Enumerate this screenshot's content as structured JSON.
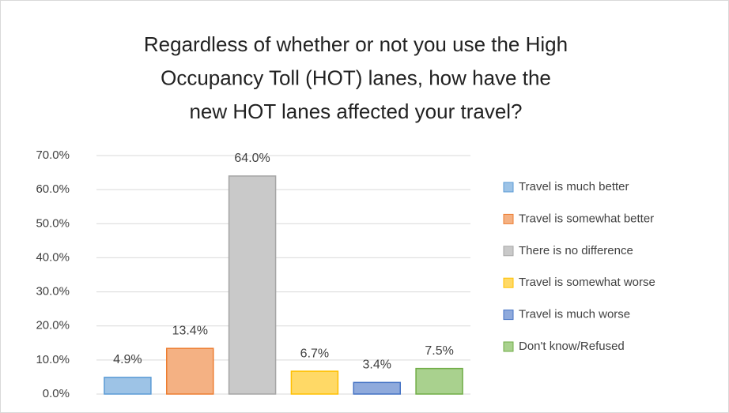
{
  "chart_data": {
    "type": "bar",
    "title": [
      "Regardless of whether or not you use the High",
      "Occupancy Toll (HOT) lanes, how have the",
      "new HOT lanes affected your travel?"
    ],
    "series": [
      {
        "name": "Travel is much better",
        "color": "#9dc3e6",
        "edgecolor": "#5b9bd5",
        "values": [
          4.9
        ],
        "value_labels": [
          "4.9%"
        ]
      },
      {
        "name": "Travel is somewhat better",
        "color": "#f4b183",
        "edgecolor": "#ed7d31",
        "values": [
          13.4
        ],
        "value_labels": [
          "13.4%"
        ]
      },
      {
        "name": "There is no difference",
        "color": "#c9c9c9",
        "edgecolor": "#a5a5a5",
        "values": [
          64.0
        ],
        "value_labels": [
          "64.0%"
        ]
      },
      {
        "name": "Travel is somewhat worse",
        "color": "#ffd966",
        "edgecolor": "#ffc000",
        "values": [
          6.7
        ],
        "value_labels": [
          "6.7%"
        ]
      },
      {
        "name": "Travel is much worse",
        "color": "#8faadc",
        "edgecolor": "#4472c4",
        "values": [
          3.4
        ],
        "value_labels": [
          "3.4%"
        ]
      },
      {
        "name": "Don't know/Refused",
        "color": "#a9d18e",
        "edgecolor": "#70ad47",
        "values": [
          7.5
        ],
        "value_labels": [
          "7.5%"
        ]
      }
    ],
    "ylim": [
      0,
      70
    ],
    "yticks": [
      {
        "value": 0,
        "label": "0.0%"
      },
      {
        "value": 10,
        "label": "10.0%"
      },
      {
        "value": 20,
        "label": "20.0%"
      },
      {
        "value": 30,
        "label": "30.0%"
      },
      {
        "value": 40,
        "label": "40.0%"
      },
      {
        "value": 50,
        "label": "50.0%"
      },
      {
        "value": 60,
        "label": "60.0%"
      },
      {
        "value": 70,
        "label": "70.0%"
      }
    ],
    "grid": true,
    "legend": "right"
  }
}
